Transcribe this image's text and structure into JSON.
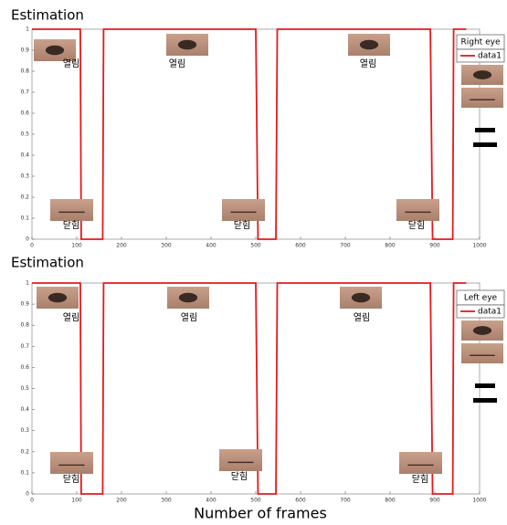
{
  "chart_data": [
    {
      "type": "line",
      "title": "Estimation",
      "legend_title": "Right eye",
      "x": [
        0,
        108,
        110,
        158,
        160,
        500,
        505,
        545,
        548,
        890,
        895,
        940,
        942,
        970
      ],
      "series": [
        {
          "name": "data1",
          "color": "#e31a1c",
          "values": [
            1,
            1,
            0,
            0,
            1,
            1,
            0,
            0,
            1,
            1,
            0,
            0,
            1,
            1
          ]
        }
      ],
      "xlim": [
        0,
        1000
      ],
      "xticks": [
        0,
        100,
        200,
        300,
        400,
        500,
        600,
        700,
        800,
        900,
        1000
      ],
      "ylim": [
        0,
        1
      ],
      "yticks": [
        0,
        0.1,
        0.2,
        0.3,
        0.4,
        0.5,
        0.6,
        0.7,
        0.8,
        0.9,
        1
      ],
      "annotations": [
        "열림",
        "열림",
        "열림",
        "닫힘",
        "닫힘",
        "닫힘"
      ]
    },
    {
      "type": "line",
      "title": "Estimation",
      "legend_title": "Left eye",
      "xlabel": "Number of frames",
      "x": [
        0,
        108,
        110,
        158,
        160,
        500,
        505,
        545,
        548,
        890,
        895,
        940,
        942,
        970
      ],
      "series": [
        {
          "name": "data1",
          "color": "#e31a1c",
          "values": [
            1,
            1,
            0,
            0,
            1,
            1,
            0,
            0,
            1,
            1,
            0,
            0,
            1,
            1
          ]
        }
      ],
      "xlim": [
        0,
        1000
      ],
      "xticks": [
        0,
        100,
        200,
        300,
        400,
        500,
        600,
        700,
        800,
        900,
        1000
      ],
      "ylim": [
        0,
        1
      ],
      "yticks": [
        0,
        0.1,
        0.2,
        0.3,
        0.4,
        0.5,
        0.6,
        0.7,
        0.8,
        0.9,
        1
      ],
      "annotations": [
        "열림",
        "열림",
        "열림",
        "닫힘",
        "닫힘",
        "닫힘"
      ]
    }
  ]
}
